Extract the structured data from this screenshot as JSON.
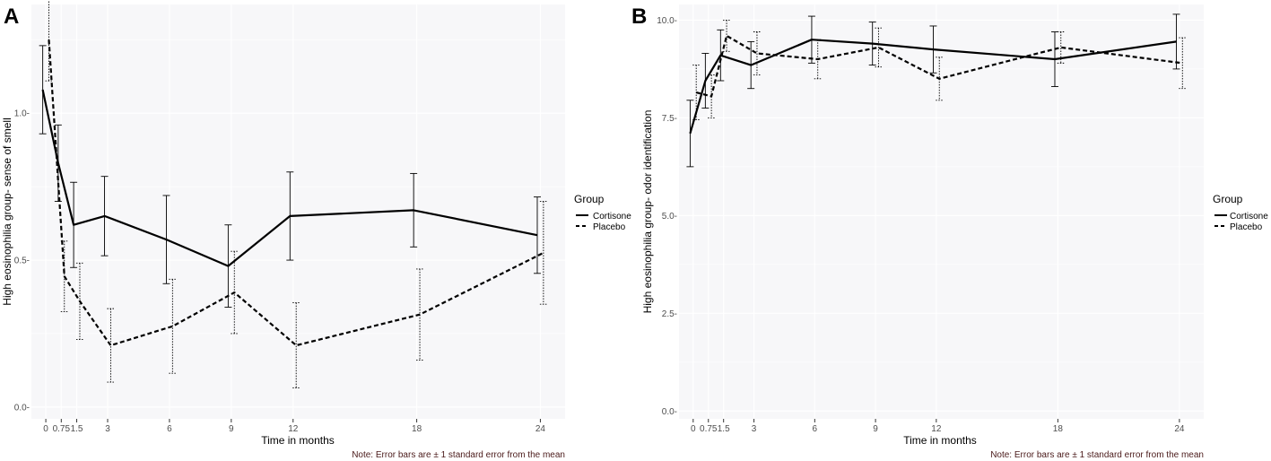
{
  "chart_data": [
    {
      "panel_label": "A",
      "type": "line",
      "title": "",
      "xlabel": "Time in months",
      "ylabel": "High eosinophilia group- sense of smell",
      "xlim": [
        -0.7,
        25.2
      ],
      "ylim": [
        -0.04,
        1.37
      ],
      "x_ticks": [
        0,
        0.75,
        1.5,
        3,
        6,
        9,
        12,
        18,
        24
      ],
      "x_tick_labels": [
        "0",
        "0.75",
        "1.5",
        "3",
        "6",
        "9",
        "12",
        "18",
        "24"
      ],
      "y_ticks": [
        0,
        0.5,
        1
      ],
      "y_tick_labels": [
        "0.0-",
        "0.5-",
        "1.0-"
      ],
      "grid": true,
      "legend": {
        "title": "Group",
        "position": "right",
        "entries": [
          "Cortisone",
          "Placebo"
        ]
      },
      "note": "Note: Error bars are ± 1 standard error from the mean",
      "series": [
        {
          "name": "Cortisone",
          "style": "solid",
          "x": [
            -0.15,
            0.6,
            1.35,
            2.85,
            5.85,
            8.85,
            11.85,
            17.85,
            23.85
          ],
          "values": [
            1.08,
            0.83,
            0.62,
            0.65,
            0.57,
            0.48,
            0.65,
            0.67,
            0.585
          ],
          "errors": [
            0.15,
            0.13,
            0.145,
            0.135,
            0.15,
            0.14,
            0.15,
            0.125,
            0.13
          ]
        },
        {
          "name": "Placebo",
          "style": "dashed",
          "x": [
            0.15,
            0.9,
            1.65,
            3.15,
            6.15,
            9.15,
            12.15,
            18.15,
            24.15
          ],
          "values": [
            1.25,
            0.445,
            0.36,
            0.21,
            0.275,
            0.39,
            0.21,
            0.315,
            0.525
          ],
          "errors": [
            0.14,
            0.12,
            0.13,
            0.125,
            0.16,
            0.14,
            0.145,
            0.155,
            0.175
          ]
        }
      ]
    },
    {
      "panel_label": "B",
      "type": "line",
      "title": "",
      "xlabel": "Time in months",
      "ylabel": "High eosinophilia group- odor identification",
      "xlim": [
        -0.7,
        25.2
      ],
      "ylim": [
        -0.2,
        10.4
      ],
      "x_ticks": [
        0,
        0.75,
        1.5,
        3,
        6,
        9,
        12,
        18,
        24
      ],
      "x_tick_labels": [
        "0",
        "0.75",
        "1.5",
        "3",
        "6",
        "9",
        "12",
        "18",
        "24"
      ],
      "y_ticks": [
        0,
        2.5,
        5,
        7.5,
        10
      ],
      "y_tick_labels": [
        "0.0-",
        "2.5-",
        "5.0-",
        "7.5-",
        "10.0-"
      ],
      "grid": true,
      "legend": {
        "title": "Group",
        "position": "right",
        "entries": [
          "Cortisone",
          "Placebo"
        ]
      },
      "note": "Note: Error bars are ± 1 standard error from the mean",
      "series": [
        {
          "name": "Cortisone",
          "style": "solid",
          "x": [
            -0.15,
            0.6,
            1.35,
            2.85,
            5.85,
            8.85,
            11.85,
            17.85,
            23.85
          ],
          "values": [
            7.1,
            8.45,
            9.1,
            8.85,
            9.5,
            9.4,
            9.25,
            9.0,
            9.45
          ],
          "errors": [
            0.85,
            0.7,
            0.65,
            0.6,
            0.6,
            0.55,
            0.6,
            0.7,
            0.7
          ]
        },
        {
          "name": "Placebo",
          "style": "dashed",
          "x": [
            0.15,
            0.9,
            1.65,
            3.15,
            6.15,
            9.15,
            12.15,
            18.15,
            24.15
          ],
          "values": [
            8.15,
            8.05,
            9.6,
            9.15,
            9.0,
            9.3,
            8.5,
            9.3,
            8.9
          ],
          "errors": [
            0.7,
            0.55,
            0.4,
            0.55,
            0.5,
            0.5,
            0.55,
            0.4,
            0.65
          ]
        }
      ]
    }
  ]
}
